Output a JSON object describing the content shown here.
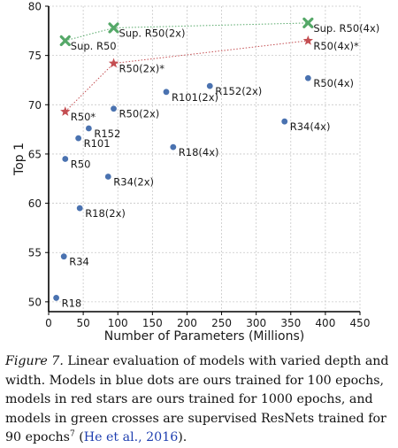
{
  "chart_data": {
    "type": "scatter",
    "xlabel": "Number of Parameters (Millions)",
    "ylabel": "Top 1",
    "xlim": [
      0,
      450
    ],
    "ylim": [
      49,
      80
    ],
    "xticks": [
      0,
      50,
      100,
      150,
      200,
      250,
      300,
      350,
      400,
      450
    ],
    "yticks": [
      50,
      55,
      60,
      65,
      70,
      75,
      80
    ],
    "grid": true,
    "series": [
      {
        "marker": "circle",
        "color": "#4a72b0",
        "points": [
          {
            "x": 11,
            "y": 50.4,
            "label": "R18"
          },
          {
            "x": 22,
            "y": 54.6,
            "label": "R34"
          },
          {
            "x": 24,
            "y": 64.5,
            "label": "R50"
          },
          {
            "x": 43,
            "y": 66.6,
            "label": "R101"
          },
          {
            "x": 58,
            "y": 67.6,
            "label": "R152"
          },
          {
            "x": 45,
            "y": 59.5,
            "label": "R18(2x)"
          },
          {
            "x": 86,
            "y": 62.7,
            "label": "R34(2x)"
          },
          {
            "x": 94,
            "y": 69.6,
            "label": "R50(2x)"
          },
          {
            "x": 170,
            "y": 71.3,
            "label": "R101(2x)"
          },
          {
            "x": 233,
            "y": 71.9,
            "label": "R152(2x)"
          },
          {
            "x": 180,
            "y": 65.7,
            "label": "R18(4x)"
          },
          {
            "x": 341,
            "y": 68.3,
            "label": "R34(4x)"
          },
          {
            "x": 375,
            "y": 72.7,
            "label": "R50(4x)"
          }
        ]
      },
      {
        "marker": "star",
        "color": "#c44e52",
        "connected": true,
        "points": [
          {
            "x": 24,
            "y": 69.3,
            "label": "R50*"
          },
          {
            "x": 94,
            "y": 74.2,
            "label": "R50(2x)*"
          },
          {
            "x": 375,
            "y": 76.5,
            "label": "R50(4x)*"
          }
        ]
      },
      {
        "marker": "cross",
        "color": "#55a868",
        "connected": true,
        "points": [
          {
            "x": 24,
            "y": 76.5,
            "label": "Sup. R50"
          },
          {
            "x": 94,
            "y": 77.8,
            "label": "Sup. R50(2x)"
          },
          {
            "x": 375,
            "y": 78.3,
            "label": "Sup. R50(4x)"
          }
        ]
      }
    ]
  },
  "caption": {
    "figure_label": "Figure 7.",
    "text": " Linear evaluation of models with varied depth and width. Models in blue dots are ours trained for 100 epochs, models in red stars are ours trained for 1000 epochs, and models in green crosses are supervised ResNets trained for 90 epochs",
    "footnote_mark": "7",
    "citation_open": " (",
    "citation": "He et al., 2016",
    "citation_close": ")."
  }
}
